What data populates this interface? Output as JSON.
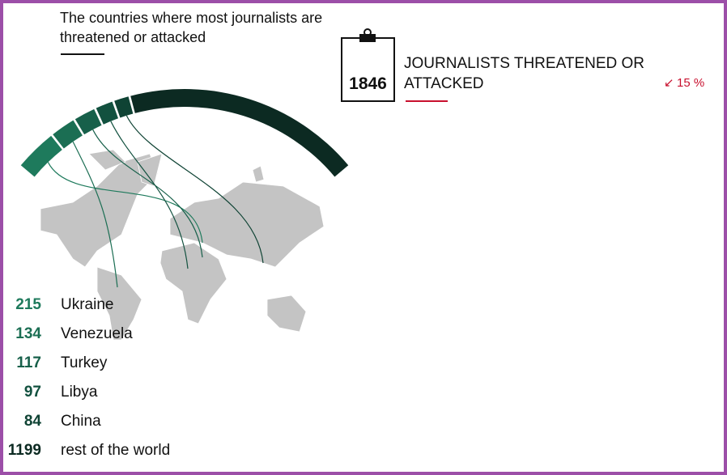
{
  "chart_data": {
    "type": "arc",
    "title": "The countries where most journalists are threatened or attacked",
    "categories": [
      "Ukraine",
      "Venezuela",
      "Turkey",
      "Libya",
      "China",
      "rest of the world"
    ],
    "values": [
      215,
      134,
      117,
      97,
      84,
      1199
    ],
    "colors": [
      "#1e7a5c",
      "#1b6e53",
      "#17604a",
      "#12513f",
      "#0f4334",
      "#0c2a22"
    ]
  },
  "summary": {
    "total": 1846,
    "label": "JOURNALISTS THREATENED OR ATTACKED",
    "change": "15 %"
  }
}
